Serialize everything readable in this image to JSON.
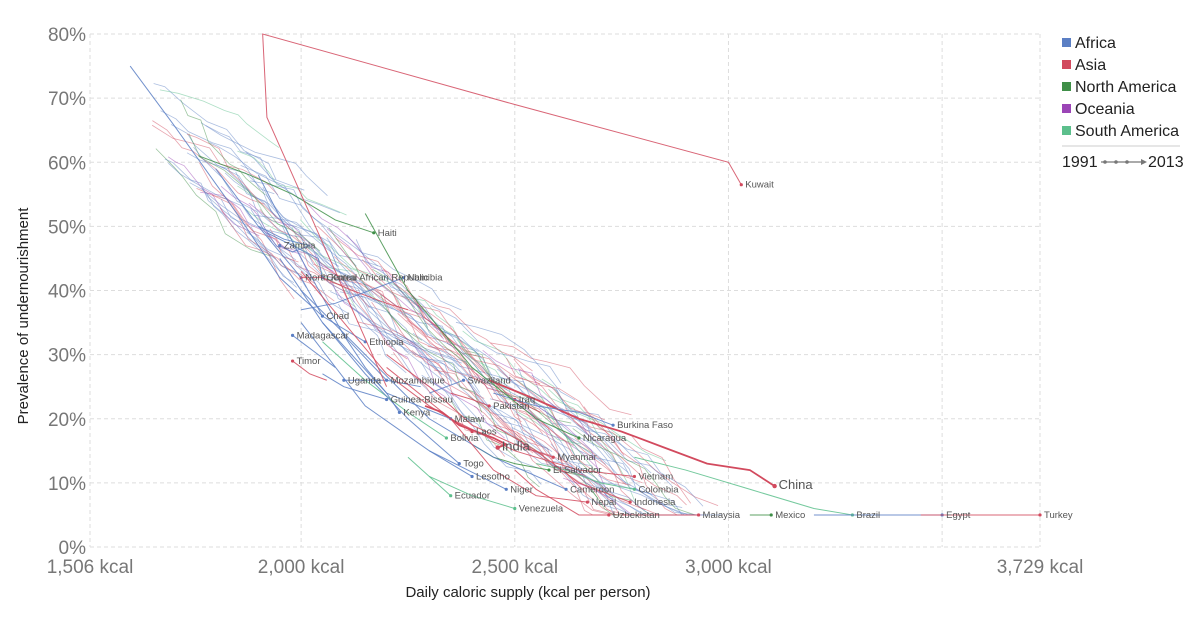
{
  "chart_data": {
    "type": "line",
    "xlabel": "Daily caloric supply (kcal per person)",
    "ylabel": "Prevalence of undernourishment",
    "xlim": [
      1506,
      3729
    ],
    "ylim": [
      0,
      80
    ],
    "x_ticks": [
      {
        "value": 1506,
        "label": "1,506 kcal"
      },
      {
        "value": 2000,
        "label": "2,000 kcal"
      },
      {
        "value": 2500,
        "label": "2,500 kcal"
      },
      {
        "value": 3000,
        "label": "3,000 kcal"
      },
      {
        "value": 3729,
        "label": "3,729 kcal"
      }
    ],
    "x_grid_extra": [
      3500
    ],
    "y_ticks": [
      {
        "value": 0,
        "label": "0%"
      },
      {
        "value": 10,
        "label": "10%"
      },
      {
        "value": 20,
        "label": "20%"
      },
      {
        "value": 30,
        "label": "30%"
      },
      {
        "value": 40,
        "label": "40%"
      },
      {
        "value": 50,
        "label": "50%"
      },
      {
        "value": 60,
        "label": "60%"
      },
      {
        "value": 70,
        "label": "70%"
      },
      {
        "value": 80,
        "label": "80%"
      }
    ],
    "grid": true,
    "legend_position": "top-right",
    "legend": [
      {
        "name": "Africa",
        "color": "#5b7fc4"
      },
      {
        "name": "Asia",
        "color": "#d24a5e"
      },
      {
        "name": "North America",
        "color": "#3f8f48"
      },
      {
        "name": "Oceania",
        "color": "#9b45b6"
      },
      {
        "name": "South America",
        "color": "#5cbf8c"
      }
    ],
    "time_legend": {
      "start": "1991",
      "end": "2013"
    },
    "labeled_series": [
      {
        "name": "China",
        "region": "Asia",
        "highlight": true,
        "x": [
          2440,
          2550,
          2650,
          2750,
          2850,
          2950,
          3050,
          3108
        ],
        "y": [
          26,
          23,
          20,
          18,
          15.5,
          13,
          12,
          9.5
        ]
      },
      {
        "name": "India",
        "region": "Asia",
        "highlight": true,
        "x": [
          2290,
          2330,
          2370,
          2410,
          2450,
          2480,
          2460
        ],
        "y": [
          22,
          21,
          19,
          18,
          17,
          16,
          15.5
        ]
      },
      {
        "name": "Haiti",
        "region": "North America",
        "x": [
          1760,
          1880,
          1980,
          2080,
          2170
        ],
        "y": [
          61,
          58,
          55,
          51,
          49
        ]
      },
      {
        "name": "Zambia",
        "region": "Africa",
        "x": [
          1900,
          1960,
          2020,
          1980,
          1950
        ],
        "y": [
          50,
          48,
          47,
          46,
          47
        ]
      },
      {
        "name": "Central African Republic",
        "region": "Africa",
        "x": [
          1920,
          1980,
          2040,
          2050
        ],
        "y": [
          49,
          47,
          45,
          42
        ]
      },
      {
        "name": "North Korea",
        "region": "Asia",
        "x": [
          2250,
          2200,
          2120,
          2050,
          2000
        ],
        "y": [
          37,
          38,
          40,
          42,
          42
        ]
      },
      {
        "name": "Namibia",
        "region": "Africa",
        "x": [
          2000,
          2080,
          2160,
          2240
        ],
        "y": [
          37,
          38,
          40,
          42
        ]
      },
      {
        "name": "Chad",
        "region": "Africa",
        "x": [
          1800,
          1900,
          2000,
          2050
        ],
        "y": [
          59,
          50,
          42,
          36
        ]
      },
      {
        "name": "Madagascar",
        "region": "Africa",
        "x": [
          2080,
          2040,
          2000,
          1980
        ],
        "y": [
          28,
          30,
          32,
          33
        ]
      },
      {
        "name": "Ethiopia",
        "region": "Africa",
        "x": [
          1600,
          1700,
          1850,
          1950,
          2050,
          2150
        ],
        "y": [
          75,
          66,
          52,
          42,
          36,
          32
        ]
      },
      {
        "name": "Timor",
        "region": "Asia",
        "x": [
          2060,
          2020,
          2000,
          1980
        ],
        "y": [
          26,
          27,
          28,
          29
        ]
      },
      {
        "name": "Uganda",
        "region": "Africa",
        "x": [
          2280,
          2200,
          2100
        ],
        "y": [
          25,
          26,
          26
        ]
      },
      {
        "name": "Mozambique",
        "region": "Africa",
        "x": [
          1900,
          2000,
          2100,
          2200
        ],
        "y": [
          58,
          45,
          33,
          26
        ]
      },
      {
        "name": "Swaziland",
        "region": "Africa",
        "x": [
          2300,
          2340,
          2380
        ],
        "y": [
          24,
          25,
          26
        ]
      },
      {
        "name": "Guinea-Bissau",
        "region": "Africa",
        "x": [
          2050,
          2100,
          2150,
          2200
        ],
        "y": [
          27,
          25,
          24,
          23
        ]
      },
      {
        "name": "Kenya",
        "region": "Africa",
        "x": [
          2100,
          2150,
          2200,
          2230
        ],
        "y": [
          33,
          28,
          24,
          21
        ]
      },
      {
        "name": "Pakistan",
        "region": "Asia",
        "x": [
          2350,
          2400,
          2440
        ],
        "y": [
          24,
          23,
          22
        ]
      },
      {
        "name": "Iraq",
        "region": "Asia",
        "x": [
          2560,
          2530,
          2500
        ],
        "y": [
          21,
          22,
          23
        ]
      },
      {
        "name": "Malawi",
        "region": "Africa",
        "x": [
          1950,
          2050,
          2200,
          2350
        ],
        "y": [
          45,
          35,
          24,
          20
        ]
      },
      {
        "name": "Burkina Faso",
        "region": "Africa",
        "x": [
          2450,
          2550,
          2650,
          2730
        ],
        "y": [
          24,
          22,
          21,
          19
        ]
      },
      {
        "name": "Laos",
        "region": "Asia",
        "x": [
          2000,
          2100,
          2200,
          2300,
          2400
        ],
        "y": [
          43,
          35,
          27,
          22,
          18
        ]
      },
      {
        "name": "Bolivia",
        "region": "South America",
        "x": [
          2050,
          2150,
          2250,
          2340
        ],
        "y": [
          32,
          26,
          21,
          17
        ]
      },
      {
        "name": "Nicaragua",
        "region": "North America",
        "x": [
          2150,
          2250,
          2400,
          2550,
          2650
        ],
        "y": [
          52,
          40,
          28,
          20,
          17
        ]
      },
      {
        "name": "Myanmar",
        "region": "Asia",
        "x": [
          2200,
          2300,
          2400,
          2500,
          2590
        ],
        "y": [
          30,
          25,
          19,
          16,
          14
        ]
      },
      {
        "name": "Togo",
        "region": "Africa",
        "x": [
          2050,
          2150,
          2250,
          2370
        ],
        "y": [
          35,
          27,
          20,
          13
        ]
      },
      {
        "name": "El Salvador",
        "region": "North America",
        "x": [
          2400,
          2450,
          2500,
          2580
        ],
        "y": [
          16,
          14,
          13,
          12
        ]
      },
      {
        "name": "Vietnam",
        "region": "Asia",
        "x": [
          2200,
          2350,
          2500,
          2650,
          2780
        ],
        "y": [
          28,
          20,
          15,
          12,
          11
        ]
      },
      {
        "name": "Lesotho",
        "region": "Africa",
        "x": [
          2300,
          2350,
          2400
        ],
        "y": [
          15,
          13,
          11
        ]
      },
      {
        "name": "Cameroon",
        "region": "Africa",
        "x": [
          2000,
          2150,
          2300,
          2450,
          2620
        ],
        "y": [
          40,
          30,
          20,
          14,
          9
        ]
      },
      {
        "name": "Colombia",
        "region": "South America",
        "x": [
          2550,
          2620,
          2700,
          2780
        ],
        "y": [
          13,
          12,
          10,
          9
        ]
      },
      {
        "name": "Ecuador",
        "region": "South America",
        "x": [
          2250,
          2300,
          2350
        ],
        "y": [
          14,
          11,
          8
        ]
      },
      {
        "name": "Niger",
        "region": "Africa",
        "x": [
          2000,
          2150,
          2300,
          2480
        ],
        "y": [
          35,
          22,
          15,
          9
        ]
      },
      {
        "name": "Nepal",
        "region": "Asia",
        "x": [
          2350,
          2450,
          2550,
          2670
        ],
        "y": [
          20,
          12,
          8,
          7
        ]
      },
      {
        "name": "Indonesia",
        "region": "Asia",
        "x": [
          2450,
          2550,
          2650,
          2770
        ],
        "y": [
          19,
          15,
          10,
          7
        ]
      },
      {
        "name": "Venezuela",
        "region": "South America",
        "x": [
          2300,
          2400,
          2500
        ],
        "y": [
          11,
          8,
          6
        ]
      },
      {
        "name": "Malaysia",
        "region": "Asia",
        "x": [
          2750,
          2850,
          2930
        ],
        "y": [
          5,
          5,
          5
        ]
      },
      {
        "name": "Uzbekistan",
        "region": "Asia",
        "x": [
          2500,
          2550,
          2600,
          2650,
          2720
        ],
        "y": [
          12,
          9,
          7,
          5,
          5
        ]
      },
      {
        "name": "Mexico",
        "region": "North America",
        "x": [
          3050,
          3080,
          3100
        ],
        "y": [
          5,
          5,
          5
        ]
      },
      {
        "name": "Brazil",
        "region": "South America",
        "x": [
          2780,
          2900,
          3050,
          3200,
          3290
        ],
        "y": [
          14,
          12,
          9,
          6,
          5
        ]
      },
      {
        "name": "Egypt",
        "region": "Africa",
        "x": [
          3200,
          3300,
          3400,
          3500
        ],
        "y": [
          5,
          5,
          5,
          5
        ]
      },
      {
        "name": "Kuwait",
        "region": "Asia",
        "x": [
          2200,
          1920,
          1910,
          2500,
          3000,
          3030
        ],
        "y": [
          25,
          67,
          80,
          69,
          60,
          56.5
        ]
      },
      {
        "name": "Turkey",
        "region": "Asia",
        "x": [
          3450,
          3550,
          3650,
          3729
        ],
        "y": [
          5,
          5,
          5,
          5
        ]
      }
    ]
  }
}
